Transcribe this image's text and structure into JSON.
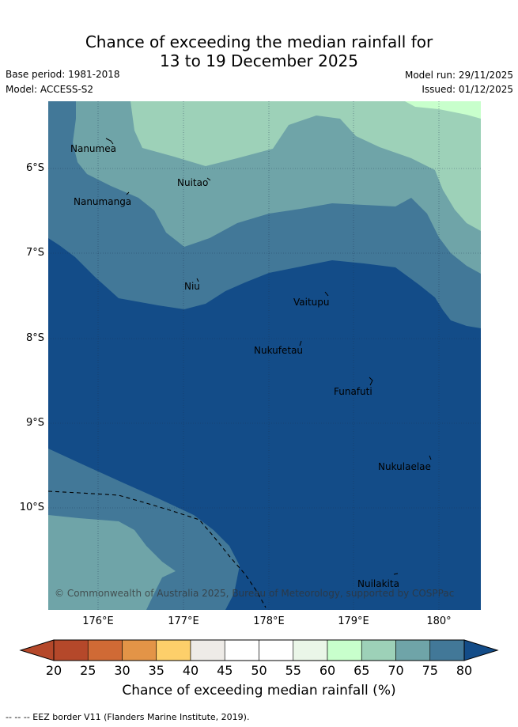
{
  "header": {
    "title_line1": "Chance of exceeding the median rainfall for",
    "title_line2": "13 to 19 December 2025",
    "base_period": "Base period: 1981-2018",
    "model": "Model: ACCESS-S2",
    "model_run": "Model run: 29/11/2025",
    "issued": "Issued: 01/12/2025"
  },
  "map": {
    "islands": [
      "Nanumea",
      "Nuitao",
      "Nanumanga",
      "Niu",
      "Vaitupu",
      "Nukufetau",
      "Funafuti",
      "Nukulaelae",
      "Nuilakita"
    ],
    "latitude_labels": [
      "6°S",
      "7°S",
      "8°S",
      "9°S",
      "10°S"
    ],
    "longitude_labels": [
      "176°E",
      "177°E",
      "178°E",
      "179°E",
      "180°"
    ],
    "copyright": "© Commonwealth of Australia 2025, Bureau of Meteorology, supported by COSPPac"
  },
  "colorbar": {
    "ticks": [
      "20",
      "25",
      "30",
      "35",
      "40",
      "45",
      "50",
      "55",
      "60",
      "65",
      "70",
      "75",
      "80"
    ],
    "colors": [
      "#b5482a",
      "#d06a35",
      "#e39447",
      "#fdcf6a",
      "#eeebe7",
      "#ffffff",
      "#ffffff",
      "#eaf6e8",
      "#c8ffcc",
      "#9dd1b8",
      "#6fa4a8",
      "#427898",
      "#134c88"
    ],
    "title": "Chance of exceeding median rainfall (%)"
  },
  "legend": {
    "eez_line": "--  --  -- EEZ border V11 (Flanders Marine Institute, 2019)."
  }
}
